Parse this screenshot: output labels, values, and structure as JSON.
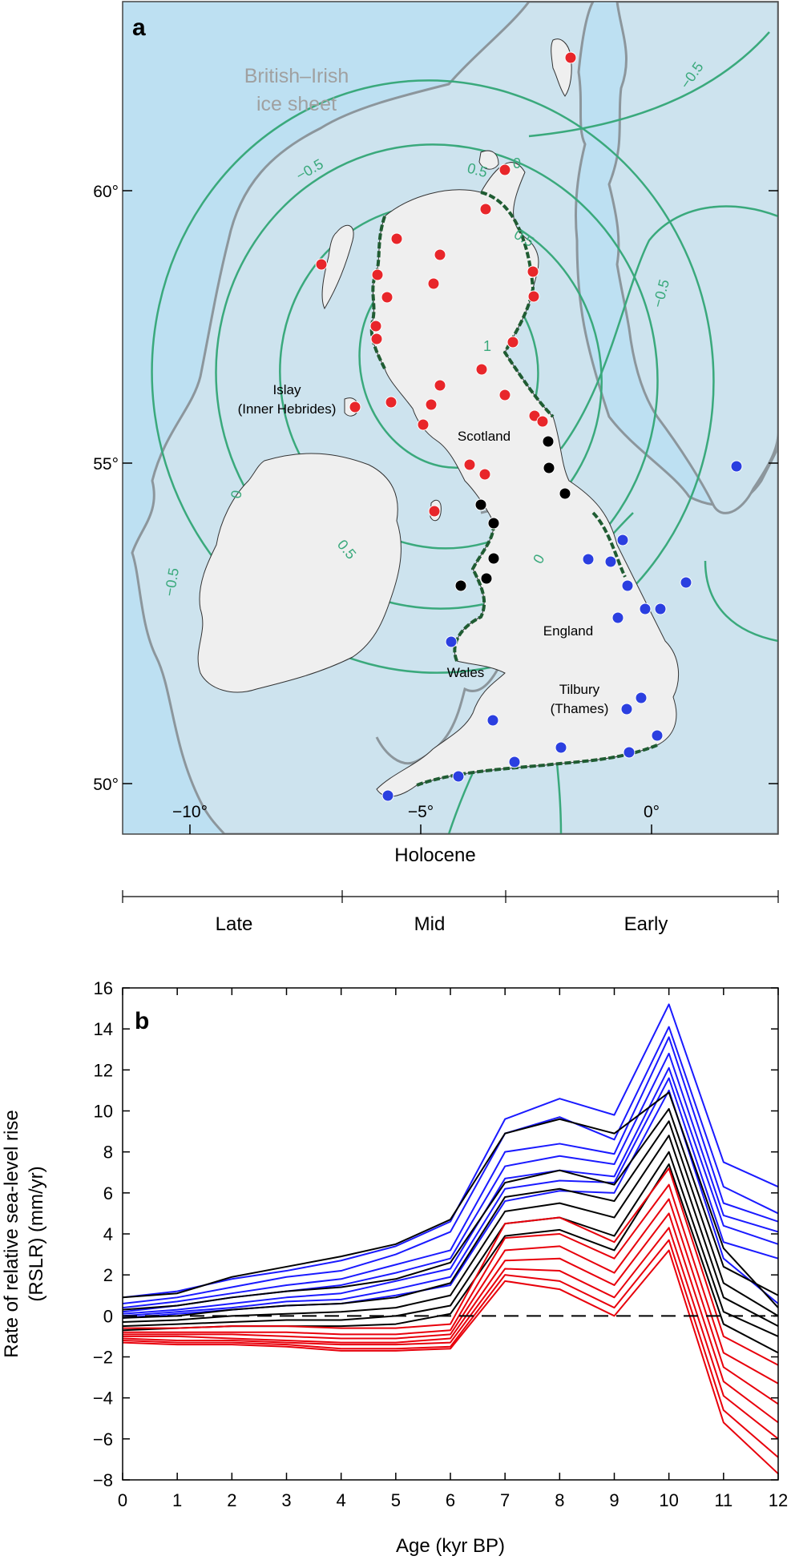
{
  "panel_a": {
    "label": "a",
    "ice_sheet_label": [
      "British–Irish",
      "ice sheet"
    ],
    "place_labels": {
      "islay": [
        "Islay",
        "(Inner Hebrides)"
      ],
      "scotland": "Scotland",
      "england": "England",
      "wales": "Wales",
      "tilbury": [
        "Tilbury",
        "(Thames)"
      ]
    },
    "lat_ticks": [
      "60°",
      "55°",
      "50°"
    ],
    "lon_ticks": [
      "−10°",
      "−5°",
      "0°"
    ],
    "contour_labels": [
      "−0.5",
      "0",
      "0.5",
      "1",
      "0.5",
      "0",
      "0.5",
      "0",
      "−0.5",
      "−0.5",
      "−0.5"
    ],
    "colors": {
      "sea": "#bde0f2",
      "ice": "#cde3ee",
      "land": "#efefef",
      "contour": "#3aa97c",
      "ice_edge": "#8c969c",
      "coast_green": "#1f5c32"
    }
  },
  "timeline": {
    "title": "Holocene",
    "periods": [
      "Late",
      "Mid",
      "Early"
    ]
  },
  "chart_data": {
    "type": "line",
    "panel_label": "b",
    "xlabel": "Age (kyr BP)",
    "ylabel": [
      "Rate of relative sea-level rise",
      "(RSLR) (mm/yr)"
    ],
    "xlim": [
      0,
      12
    ],
    "ylim": [
      -8,
      16
    ],
    "x": [
      0,
      1,
      2,
      3,
      4,
      5,
      6,
      7,
      8,
      9,
      10,
      11,
      12
    ],
    "x_ticks": [
      0,
      1,
      2,
      3,
      4,
      5,
      6,
      7,
      8,
      9,
      10,
      11,
      12
    ],
    "y_ticks": [
      -8,
      -6,
      -4,
      -2,
      0,
      2,
      4,
      6,
      8,
      10,
      12,
      14,
      16
    ],
    "reference_line": 0,
    "series": [
      {
        "color": "#1a1aff",
        "values": [
          0.9,
          1.2,
          1.8,
          2.2,
          2.7,
          3.4,
          4.6,
          9.6,
          10.6,
          9.8,
          15.2,
          7.5,
          6.3
        ]
      },
      {
        "color": "#1a1aff",
        "values": [
          0.6,
          0.9,
          1.4,
          1.9,
          2.2,
          3.0,
          4.1,
          8.9,
          9.7,
          8.6,
          14.1,
          6.3,
          5.0
        ]
      },
      {
        "color": "#1a1aff",
        "values": [
          0.4,
          0.7,
          1.1,
          1.5,
          1.8,
          2.5,
          3.2,
          8.0,
          8.4,
          7.9,
          13.6,
          5.5,
          4.6
        ]
      },
      {
        "color": "#1a1aff",
        "values": [
          0.2,
          0.5,
          0.9,
          1.2,
          1.5,
          2.1,
          2.8,
          7.3,
          7.8,
          7.4,
          12.8,
          4.9,
          4.1
        ]
      },
      {
        "color": "#1a1aff",
        "values": [
          0.1,
          0.3,
          0.6,
          0.9,
          1.1,
          1.7,
          2.3,
          6.7,
          7.1,
          6.8,
          12.1,
          4.4,
          3.5
        ]
      },
      {
        "color": "#1a1aff",
        "values": [
          0.0,
          0.2,
          0.4,
          0.7,
          0.8,
          1.3,
          1.9,
          6.2,
          6.6,
          6.5,
          11.6,
          3.6,
          2.8
        ]
      },
      {
        "color": "#1a1aff",
        "values": [
          -0.1,
          0.1,
          0.3,
          0.5,
          0.6,
          1.0,
          1.5,
          5.6,
          6.1,
          6.0,
          11.0,
          2.8,
          0.6
        ]
      },
      {
        "color": "#000000",
        "values": [
          0.9,
          1.1,
          1.9,
          2.4,
          2.9,
          3.5,
          4.7,
          8.9,
          9.6,
          8.9,
          10.9,
          3.3,
          0.4
        ]
      },
      {
        "color": "#000000",
        "values": [
          0.3,
          0.5,
          0.9,
          1.2,
          1.4,
          1.8,
          2.6,
          6.5,
          7.1,
          6.4,
          10.1,
          2.4,
          1.0
        ]
      },
      {
        "color": "#000000",
        "values": [
          -0.1,
          0.0,
          0.3,
          0.5,
          0.6,
          0.9,
          1.6,
          5.8,
          6.2,
          5.6,
          9.5,
          1.6,
          0.0
        ]
      },
      {
        "color": "#000000",
        "values": [
          -0.3,
          -0.2,
          0.0,
          0.1,
          0.2,
          0.4,
          1.0,
          5.1,
          5.5,
          4.8,
          8.8,
          0.9,
          -0.5
        ]
      },
      {
        "color": "#000000",
        "values": [
          -0.5,
          -0.4,
          -0.3,
          -0.2,
          -0.2,
          0.0,
          0.5,
          4.5,
          4.8,
          3.9,
          8.0,
          0.2,
          -1.0
        ]
      },
      {
        "color": "#000000",
        "values": [
          -0.7,
          -0.6,
          -0.5,
          -0.5,
          -0.5,
          -0.4,
          0.1,
          3.9,
          4.2,
          3.2,
          7.4,
          -0.4,
          -1.8
        ]
      },
      {
        "color": "#e8000b",
        "values": [
          -0.6,
          -0.6,
          -0.5,
          -0.5,
          -0.6,
          -0.6,
          -0.4,
          4.5,
          4.8,
          3.6,
          7.2,
          -1.0,
          -2.4
        ]
      },
      {
        "color": "#e8000b",
        "values": [
          -0.8,
          -0.8,
          -0.8,
          -0.8,
          -0.9,
          -0.9,
          -0.7,
          3.8,
          4.0,
          2.8,
          6.4,
          -1.8,
          -3.3
        ]
      },
      {
        "color": "#e8000b",
        "values": [
          -0.9,
          -0.9,
          -0.9,
          -1.0,
          -1.1,
          -1.1,
          -0.9,
          3.2,
          3.4,
          2.1,
          5.7,
          -2.5,
          -4.3
        ]
      },
      {
        "color": "#e8000b",
        "values": [
          -1.0,
          -1.0,
          -1.1,
          -1.2,
          -1.3,
          -1.3,
          -1.1,
          2.7,
          2.8,
          1.5,
          5.0,
          -3.2,
          -5.2
        ]
      },
      {
        "color": "#e8000b",
        "values": [
          -1.1,
          -1.2,
          -1.2,
          -1.3,
          -1.4,
          -1.4,
          -1.3,
          2.3,
          2.2,
          0.9,
          4.3,
          -3.9,
          -6.0
        ]
      },
      {
        "color": "#e8000b",
        "values": [
          -1.2,
          -1.3,
          -1.3,
          -1.4,
          -1.6,
          -1.6,
          -1.5,
          2.0,
          1.7,
          0.4,
          3.7,
          -4.6,
          -6.9
        ]
      },
      {
        "color": "#e8000b",
        "values": [
          -1.3,
          -1.4,
          -1.4,
          -1.5,
          -1.7,
          -1.7,
          -1.6,
          1.7,
          1.3,
          0.0,
          3.2,
          -5.2,
          -7.7
        ]
      }
    ]
  }
}
